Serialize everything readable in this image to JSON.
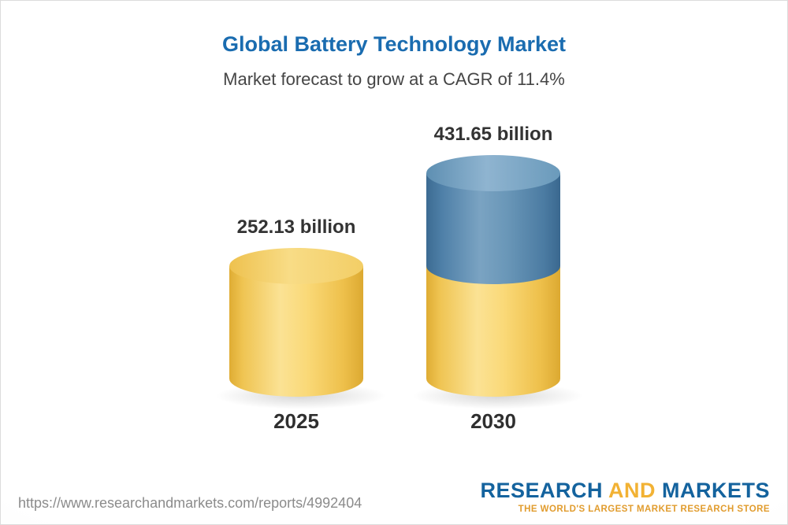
{
  "chart_data": {
    "type": "bar",
    "title": "Global Battery Technology Market",
    "subtitle": "Market forecast to grow at a CAGR of 11.4%",
    "categories": [
      "2025",
      "2030"
    ],
    "values": [
      252.13,
      431.65
    ],
    "value_labels": [
      "252.13 billion",
      "431.65 billion"
    ],
    "unit": "billion",
    "ylim": [
      0,
      431.65
    ],
    "grid": false,
    "legend": false,
    "bars": [
      {
        "category": "2025",
        "value": 252.13,
        "label": "252.13 billion",
        "segments": [
          {
            "value": 252.13,
            "color": "#F5CB5F"
          }
        ]
      },
      {
        "category": "2030",
        "value": 431.65,
        "label": "431.65 billion",
        "segments": [
          {
            "value": 252.13,
            "color": "#F5CB5F"
          },
          {
            "value": 179.52,
            "color": "#4D7EA8"
          }
        ]
      }
    ],
    "colors": {
      "base_cylinder": "#F5CB5F",
      "growth_cylinder": "#4D7EA8",
      "title": "#1A6CB0",
      "labels": "#333333"
    }
  },
  "footer": {
    "url": "https://www.researchandmarkets.com/reports/4992404",
    "brand_research": "RESEARCH",
    "brand_and": "AND",
    "brand_markets": "MARKETS",
    "brand_tagline": "THE WORLD'S LARGEST MARKET RESEARCH STORE"
  }
}
